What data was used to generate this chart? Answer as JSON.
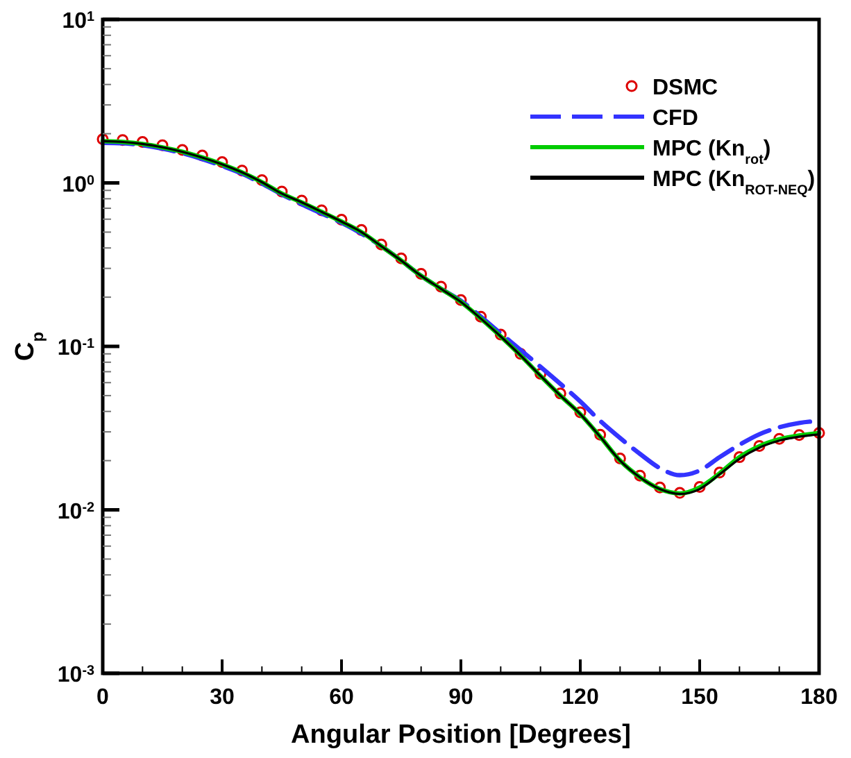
{
  "chart_data": {
    "type": "line",
    "xlabel": "Angular Position [Degrees]",
    "ylabel": "C$_{p}$",
    "log": "y",
    "grid": false,
    "legend": "top right",
    "x": [
      0,
      5,
      10,
      15,
      20,
      25,
      30,
      35,
      40,
      45,
      50,
      55,
      60,
      65,
      70,
      75,
      80,
      85,
      90,
      95,
      100,
      105,
      110,
      115,
      120,
      125,
      130,
      135,
      140,
      145,
      150,
      155,
      160,
      165,
      170,
      175,
      180
    ],
    "xlim": [
      0,
      180
    ],
    "ylim": [
      0.001,
      10
    ],
    "xticks": [
      0,
      {
        "value": 10,
        "label": null
      },
      {
        "value": 20,
        "label": null
      },
      30,
      {
        "value": 40,
        "label": null
      },
      {
        "value": 50,
        "label": null
      },
      60,
      {
        "value": 70,
        "label": null
      },
      {
        "value": 80,
        "label": null
      },
      90,
      {
        "value": 100,
        "label": null
      },
      {
        "value": 110,
        "label": null
      },
      120,
      {
        "value": 130,
        "label": null
      },
      {
        "value": 140,
        "label": null
      },
      150,
      {
        "value": 160,
        "label": null
      },
      {
        "value": 170,
        "label": null
      },
      180
    ],
    "yticks": [
      {
        "value": 0.001,
        "label": "10$^{-3}$"
      },
      {
        "value": 0.002,
        "label": null
      },
      {
        "value": 0.003,
        "label": null
      },
      {
        "value": 0.004,
        "label": null
      },
      {
        "value": 0.005,
        "label": null
      },
      {
        "value": 0.006,
        "label": null
      },
      {
        "value": 0.007,
        "label": null
      },
      {
        "value": 0.008,
        "label": null
      },
      {
        "value": 0.009,
        "label": null
      },
      {
        "value": 0.01,
        "label": "10$^{-2}$"
      },
      {
        "value": 0.02,
        "label": null
      },
      {
        "value": 0.03,
        "label": null
      },
      {
        "value": 0.04,
        "label": null
      },
      {
        "value": 0.05,
        "label": null
      },
      {
        "value": 0.06,
        "label": null
      },
      {
        "value": 0.07,
        "label": null
      },
      {
        "value": 0.08,
        "label": null
      },
      {
        "value": 0.09,
        "label": null
      },
      {
        "value": 0.1,
        "label": "10$^{-1}$"
      },
      {
        "value": 0.2,
        "label": null
      },
      {
        "value": 0.3,
        "label": null
      },
      {
        "value": 0.4,
        "label": null
      },
      {
        "value": 0.5,
        "label": null
      },
      {
        "value": 0.6,
        "label": null
      },
      {
        "value": 0.7,
        "label": null
      },
      {
        "value": 0.8,
        "label": null
      },
      {
        "value": 0.9,
        "label": null
      },
      {
        "value": 1,
        "label": "10$^{0}$"
      },
      {
        "value": 2,
        "label": null
      },
      {
        "value": 3,
        "label": null
      },
      {
        "value": 4,
        "label": null
      },
      {
        "value": 5,
        "label": null
      },
      {
        "value": 6,
        "label": null
      },
      {
        "value": 7,
        "label": null
      },
      {
        "value": 8,
        "label": null
      },
      {
        "value": 9,
        "label": null
      },
      {
        "value": 10,
        "label": "10$^{1}$"
      }
    ],
    "series": [
      {
        "name": "DSMC",
        "type": "scatter",
        "marker": "circle",
        "color": "#dd0000",
        "values": [
          1.85,
          1.83,
          1.78,
          1.7,
          1.59,
          1.47,
          1.34,
          1.19,
          1.04,
          0.885,
          0.78,
          0.68,
          0.595,
          0.515,
          0.42,
          0.345,
          0.278,
          0.232,
          0.192,
          0.152,
          0.118,
          0.09,
          0.068,
          0.0515,
          0.0395,
          0.0288,
          0.0206,
          0.0162,
          0.0137,
          0.0127,
          0.0138,
          0.0169,
          0.021,
          0.0246,
          0.0272,
          0.0287,
          0.0295
        ]
      },
      {
        "name": "CFD",
        "line_style": "dashed",
        "color": "#3333ff",
        "values": [
          1.76,
          1.75,
          1.7,
          1.62,
          1.52,
          1.4,
          1.27,
          1.14,
          0.99,
          0.85,
          0.74,
          0.65,
          0.57,
          0.49,
          0.41,
          0.335,
          0.27,
          0.225,
          0.19,
          0.152,
          0.12,
          0.095,
          0.075,
          0.059,
          0.046,
          0.035,
          0.0275,
          0.022,
          0.018,
          0.0163,
          0.0174,
          0.021,
          0.025,
          0.029,
          0.032,
          0.034,
          0.035
        ]
      },
      {
        "name": "MPC (Kn$_{rot}$)",
        "line_style": "solid",
        "color": "#00cc00",
        "values": [
          1.8,
          1.78,
          1.73,
          1.65,
          1.55,
          1.43,
          1.3,
          1.16,
          1.01,
          0.86,
          0.76,
          0.665,
          0.58,
          0.5,
          0.41,
          0.335,
          0.27,
          0.225,
          0.187,
          0.148,
          0.115,
          0.088,
          0.066,
          0.05,
          0.0385,
          0.028,
          0.02,
          0.0158,
          0.0134,
          0.0126,
          0.0137,
          0.0167,
          0.021,
          0.0245,
          0.027,
          0.0285,
          0.0295
        ]
      },
      {
        "name": "MPC (Kn$_{ROT-NEQ}$)",
        "line_style": "solid",
        "color": "#000000",
        "values": [
          1.8,
          1.78,
          1.73,
          1.65,
          1.55,
          1.43,
          1.3,
          1.16,
          1.01,
          0.86,
          0.76,
          0.665,
          0.58,
          0.5,
          0.41,
          0.335,
          0.27,
          0.225,
          0.187,
          0.148,
          0.115,
          0.088,
          0.066,
          0.05,
          0.0385,
          0.028,
          0.02,
          0.0158,
          0.0134,
          0.0125,
          0.0134,
          0.0165,
          0.0205,
          0.024,
          0.0265,
          0.028,
          0.0289
        ]
      }
    ]
  }
}
